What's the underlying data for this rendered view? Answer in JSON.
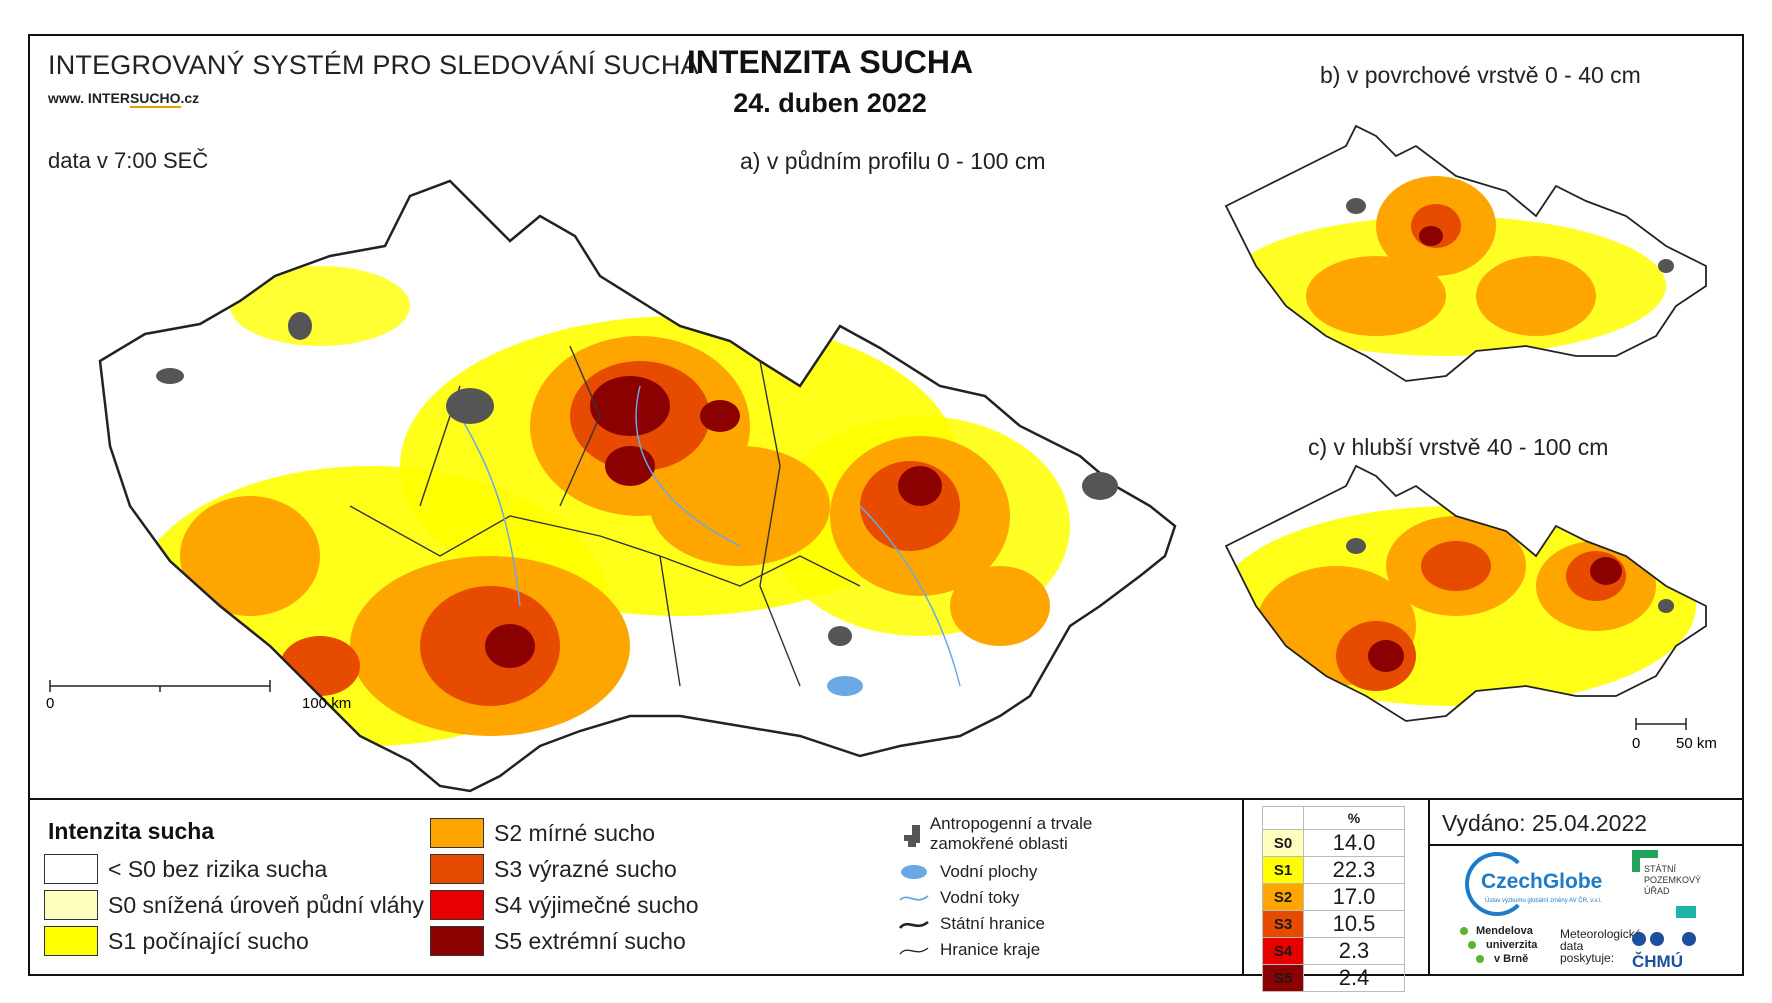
{
  "header": {
    "system_title": "INTEGROVANÝ SYSTÉM PRO SLEDOVÁNÍ SUCHA",
    "website_prefix": "www. INTER",
    "website_highlight": "SUCHO",
    "website_suffix": ".cz",
    "data_time": "data v 7:00 SEČ",
    "main_title": "INTENZITA SUCHA",
    "main_date": "24. duben 2022"
  },
  "maps": {
    "a_label": "a) v půdním profilu 0 - 100 cm",
    "b_label": "b) v povrchové vrstvě 0 - 40 cm",
    "c_label": "c) v hlubší vrstvě 40 - 100 cm",
    "scale_a": {
      "start": "0",
      "end": "100 km"
    },
    "scale_c": {
      "start": "0",
      "end": "50 km"
    }
  },
  "legend": {
    "title": "Intenzita sucha",
    "classes": [
      {
        "label": "< S0 bez rizika sucha",
        "color": "#ffffff"
      },
      {
        "label": "S0 snížená úroveň půdní vláhy",
        "color": "#ffffc0"
      },
      {
        "label": "S1 počínající sucho",
        "color": "#ffff00"
      },
      {
        "label": "S2 mírné sucho",
        "color": "#ffa500"
      },
      {
        "label": "S3 výrazné sucho",
        "color": "#e64b00"
      },
      {
        "label": "S4 výjimečné sucho",
        "color": "#e60000"
      },
      {
        "label": "S5 extrémní sucho",
        "color": "#8b0000"
      }
    ],
    "symbols": {
      "anthropogenic": "Antropogenní a trvale zamokřené oblasti",
      "water_bodies": "Vodní plochy",
      "water_streams": "Vodní toky",
      "state_border": "Státní hranice",
      "region_border": "Hranice kraje"
    }
  },
  "percent_table": {
    "header": "%",
    "rows": [
      {
        "code": "S0",
        "value": "14.0",
        "color": "#ffffc0"
      },
      {
        "code": "S1",
        "value": "22.3",
        "color": "#ffff00"
      },
      {
        "code": "S2",
        "value": "17.0",
        "color": "#ffa500"
      },
      {
        "code": "S3",
        "value": "10.5",
        "color": "#e64b00"
      },
      {
        "code": "S4",
        "value": "2.3",
        "color": "#e60000"
      },
      {
        "code": "S5",
        "value": "2.4",
        "color": "#8b0000"
      }
    ]
  },
  "issued": "Vydáno: 25.04.2022",
  "logos": {
    "czechglobe": "CzechGlobe",
    "czechglobe_sub": "Ústav výzkumu globální změny AV ČR, v.v.i.",
    "spu_lines": [
      "STÁTNÍ",
      "POZEMKOVÝ",
      "ÚŘAD"
    ],
    "mendelu_lines": [
      "Mendelova",
      "univerzita",
      "v Brně"
    ],
    "meteo_lines": [
      "Meteorologická",
      "data",
      "poskytuje:"
    ],
    "chmu": "ČHMÚ"
  }
}
